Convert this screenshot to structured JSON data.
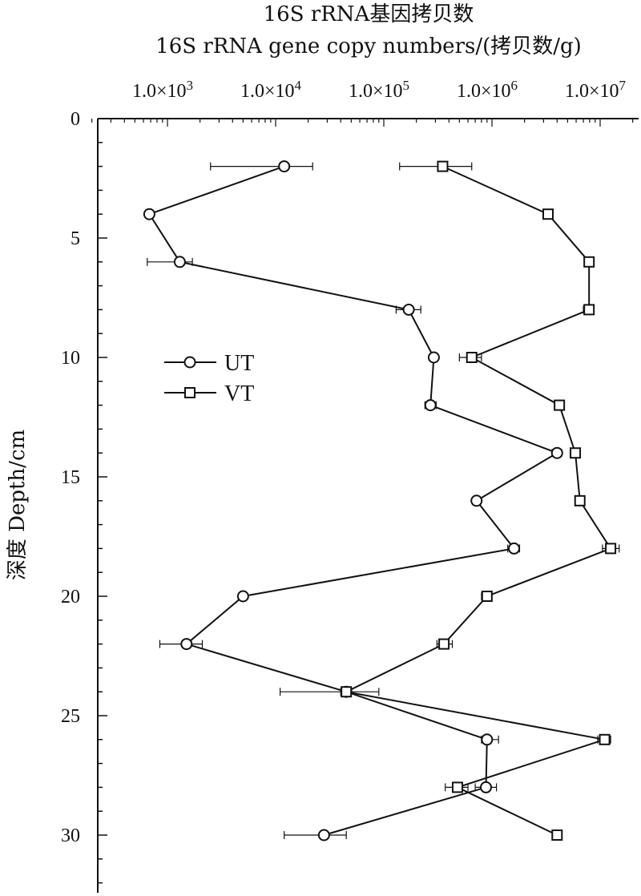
{
  "chart_data": {
    "type": "line",
    "title": "16S rRNA基因拷贝数",
    "subtitle": "16S rRNA gene copy numbers/(拷贝数/g)",
    "ylabel": "深度 Depth/cm",
    "xscale": "log",
    "xlim": [
      200,
      28000000
    ],
    "ylim": [
      0,
      32
    ],
    "y_inverted": true,
    "x_axis_position": "top",
    "x_ticks": [
      1000,
      10000,
      100000,
      1000000,
      10000000
    ],
    "x_tick_labels": [
      "1.0×10",
      "1.0×10",
      "1.0×10",
      "1.0×10",
      "1.0×10"
    ],
    "x_tick_exponents": [
      "3",
      "4",
      "5",
      "6",
      "7"
    ],
    "y_ticks": [
      0,
      5,
      10,
      15,
      20,
      25,
      30
    ],
    "y_tick_labels": [
      "0",
      "5",
      "10",
      "15",
      "20",
      "25",
      "30"
    ],
    "legend_position": "middle-left",
    "series": [
      {
        "name": "UT",
        "marker": "circle",
        "points": [
          {
            "y": 2,
            "x": 12000,
            "xerr_low": 2500,
            "xerr_high": 22000
          },
          {
            "y": 4,
            "x": 680,
            "xerr_low": 640,
            "xerr_high": 720
          },
          {
            "y": 6,
            "x": 1300,
            "xerr_low": 650,
            "xerr_high": 1700
          },
          {
            "y": 8,
            "x": 170000,
            "xerr_low": 130000,
            "xerr_high": 220000
          },
          {
            "y": 10,
            "x": 290000,
            "xerr_low": 265000,
            "xerr_high": 310000
          },
          {
            "y": 12,
            "x": 270000,
            "xerr_low": 240000,
            "xerr_high": 305000
          },
          {
            "y": 14,
            "x": 4000000,
            "xerr_low": 3600000,
            "xerr_high": 4400000
          },
          {
            "y": 16,
            "x": 720000,
            "xerr_low": 660000,
            "xerr_high": 780000
          },
          {
            "y": 18,
            "x": 1600000,
            "xerr_low": 1400000,
            "xerr_high": 1800000
          },
          {
            "y": 20,
            "x": 5000,
            "xerr_low": 4600,
            "xerr_high": 5400
          },
          {
            "y": 22,
            "x": 1500,
            "xerr_low": 850,
            "xerr_high": 2100
          },
          {
            "y": 24,
            "x": 45000,
            "xerr_low": 11000,
            "xerr_high": 90000
          },
          {
            "y": 26,
            "x": 900000,
            "xerr_low": 800000,
            "xerr_high": 1150000
          },
          {
            "y": 28,
            "x": 880000,
            "xerr_low": 700000,
            "xerr_high": 1100000
          },
          {
            "y": 30,
            "x": 28000,
            "xerr_low": 12000,
            "xerr_high": 45000
          }
        ]
      },
      {
        "name": "VT",
        "marker": "square",
        "points": [
          {
            "y": 2,
            "x": 350000,
            "xerr_low": 140000,
            "xerr_high": 650000
          },
          {
            "y": 4,
            "x": 3300000,
            "xerr_low": 3000000,
            "xerr_high": 3600000
          },
          {
            "y": 6,
            "x": 7900000,
            "xerr_low": 7300000,
            "xerr_high": 8500000
          },
          {
            "y": 8,
            "x": 7900000,
            "xerr_low": 7000000,
            "xerr_high": 8600000
          },
          {
            "y": 10,
            "x": 650000,
            "xerr_low": 500000,
            "xerr_high": 800000
          },
          {
            "y": 12,
            "x": 4200000,
            "xerr_low": 3900000,
            "xerr_high": 4500000
          },
          {
            "y": 14,
            "x": 5900000,
            "xerr_low": 5300000,
            "xerr_high": 6500000
          },
          {
            "y": 16,
            "x": 6500000,
            "xerr_low": 6000000,
            "xerr_high": 7000000
          },
          {
            "y": 18,
            "x": 12500000,
            "xerr_low": 10500000,
            "xerr_high": 15000000
          },
          {
            "y": 20,
            "x": 900000,
            "xerr_low": 800000,
            "xerr_high": 1000000
          },
          {
            "y": 22,
            "x": 360000,
            "xerr_low": 310000,
            "xerr_high": 430000
          },
          {
            "y": 24,
            "x": 45000,
            "xerr_low": 40000,
            "xerr_high": 50000
          },
          {
            "y": 26,
            "x": 11000000,
            "xerr_low": 9500000,
            "xerr_high": 12500000
          },
          {
            "y": 28,
            "x": 480000,
            "xerr_low": 370000,
            "xerr_high": 600000
          },
          {
            "y": 30,
            "x": 4000000,
            "xerr_low": 3700000,
            "xerr_high": 4300000
          }
        ]
      }
    ]
  }
}
